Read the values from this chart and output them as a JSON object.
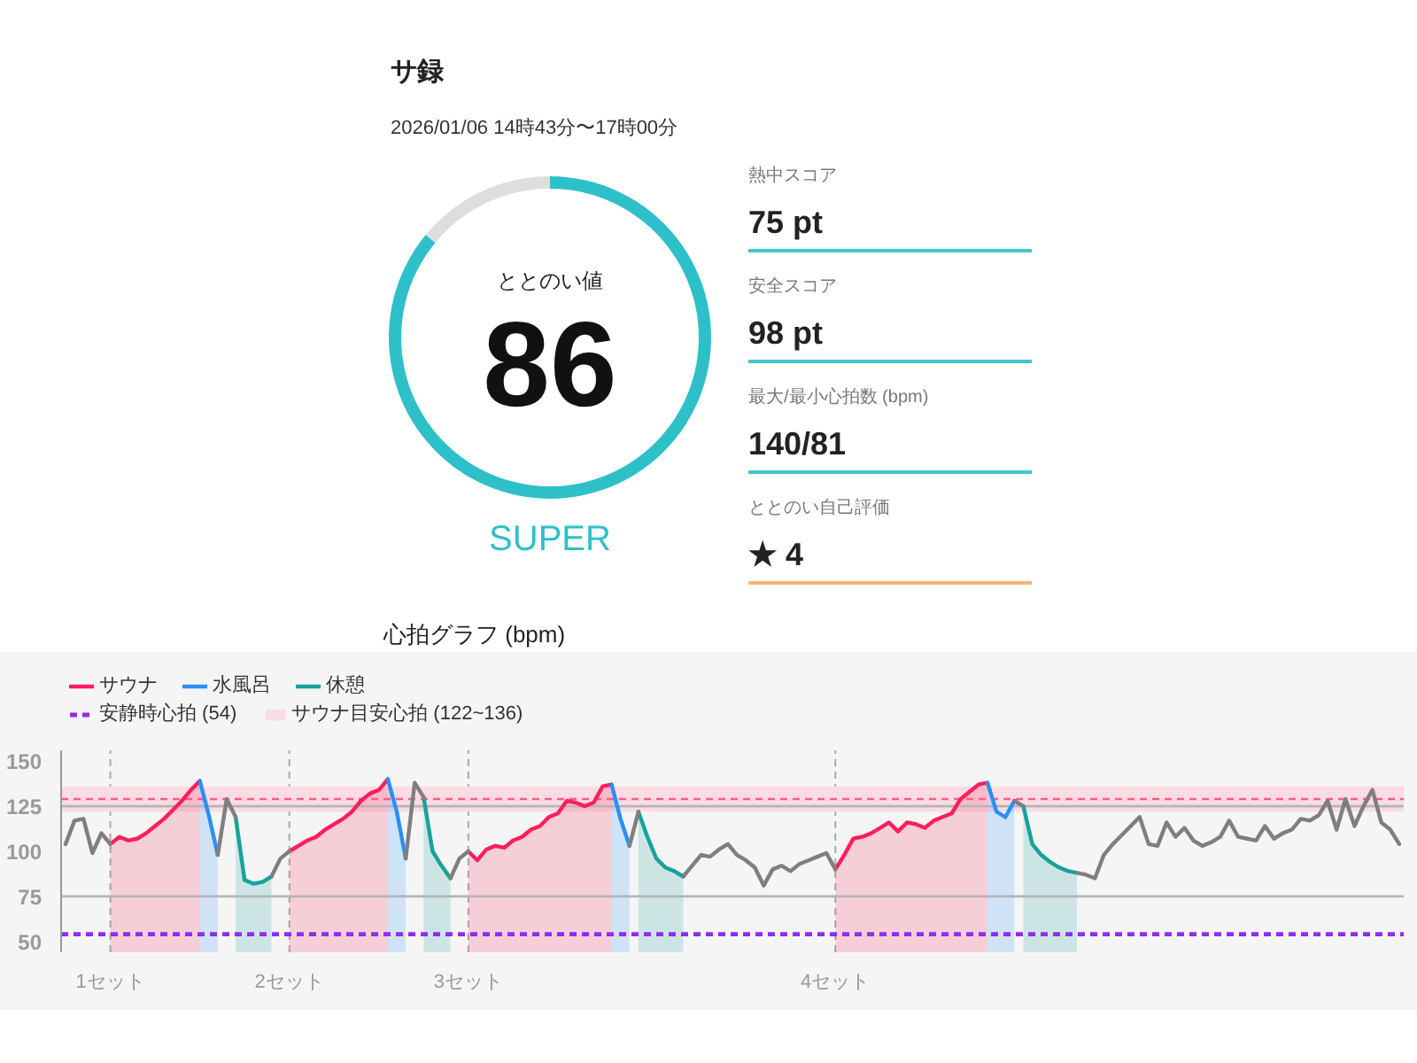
{
  "chart_data": [
    {
      "type": "donut",
      "title": "サ録",
      "subtitle": "2026/01/06 14時43分〜17時00分",
      "categories": [
        null,
        null
      ],
      "values": [
        86,
        14
      ],
      "colors": [
        "#2ec0c8",
        "#dedede"
      ],
      "value_labels": [
        "86",
        null
      ],
      "annotations": [
        "ととのい値",
        "SUPER"
      ]
    },
    {
      "type": "other",
      "annotations": [
        "熱中スコア",
        "75 pt",
        "安全スコア",
        "98 pt",
        "最大/最小心拍数 (bpm)",
        "140/81",
        "ととのい自己評価",
        "★ 4"
      ],
      "colors": [
        "#42c6cc",
        "#42c6cc",
        "#42c6cc",
        "#f7b27a"
      ]
    },
    {
      "type": "line",
      "title": "心拍グラフ (bpm)",
      "categories": [
        null,
        null,
        null,
        null,
        null,
        "1セット",
        null,
        null,
        null,
        null,
        null,
        null,
        null,
        null,
        null,
        null,
        null,
        null,
        null,
        null,
        null,
        null,
        null,
        null,
        null,
        "2セット",
        null,
        null,
        null,
        null,
        null,
        null,
        null,
        null,
        null,
        null,
        null,
        null,
        null,
        null,
        null,
        null,
        null,
        null,
        null,
        "3セット",
        null,
        null,
        null,
        null,
        null,
        null,
        null,
        null,
        null,
        null,
        null,
        null,
        null,
        null,
        null,
        null,
        null,
        null,
        null,
        null,
        null,
        null,
        null,
        null,
        null,
        null,
        null,
        null,
        null,
        null,
        null,
        null,
        null,
        null,
        null,
        null,
        null,
        null,
        null,
        null,
        "4セット",
        null,
        null,
        null,
        null,
        null,
        null,
        null,
        null,
        null,
        null,
        null,
        null,
        null,
        null,
        null,
        null,
        null,
        null,
        null,
        null,
        null,
        null,
        null,
        null,
        null,
        null,
        null,
        null,
        null,
        null,
        null,
        null,
        null,
        null,
        null,
        null,
        null,
        null,
        null,
        null,
        null,
        null,
        null,
        null,
        null,
        null,
        null,
        null,
        null,
        null,
        null,
        null,
        null,
        null,
        null,
        null,
        null,
        null,
        null,
        null,
        null,
        null,
        null
      ],
      "series": [
        {
          "name": "サウナ",
          "type": "area",
          "color": "#ff1f5b",
          "values": [
            null,
            null,
            null,
            null,
            null,
            104,
            108,
            106,
            107,
            110,
            114,
            118,
            123,
            128,
            134,
            139,
            null,
            null,
            null,
            null,
            null,
            null,
            null,
            null,
            null,
            100,
            103,
            106,
            108,
            112,
            115,
            118,
            122,
            128,
            132,
            134,
            140,
            null,
            null,
            null,
            null,
            null,
            null,
            null,
            null,
            100,
            95,
            101,
            103,
            102,
            106,
            108,
            112,
            114,
            119,
            121,
            128,
            127,
            125,
            127,
            136,
            137,
            null,
            null,
            null,
            null,
            null,
            null,
            null,
            null,
            null,
            null,
            null,
            null,
            null,
            null,
            null,
            null,
            null,
            null,
            null,
            null,
            null,
            null,
            null,
            null,
            90,
            98,
            107,
            108,
            110,
            113,
            116,
            111,
            116,
            115,
            113,
            117,
            119,
            121,
            129,
            133,
            137,
            138,
            null,
            null,
            null,
            null,
            null,
            null,
            null,
            null,
            null,
            null,
            null,
            null,
            null,
            null,
            null,
            null,
            null,
            null,
            null,
            null,
            null,
            null,
            null,
            null,
            null,
            null,
            null,
            null,
            null,
            null,
            null,
            null,
            null,
            null,
            null,
            null,
            null,
            null,
            null,
            null,
            null,
            null,
            null,
            null,
            null,
            null
          ]
        },
        {
          "name": "水風呂",
          "type": "area",
          "color": "#2a8ff7",
          "values": [
            null,
            null,
            null,
            null,
            null,
            null,
            null,
            null,
            null,
            null,
            null,
            null,
            null,
            null,
            null,
            139,
            120,
            98,
            null,
            null,
            null,
            null,
            null,
            null,
            null,
            null,
            null,
            null,
            null,
            null,
            null,
            null,
            null,
            null,
            null,
            null,
            140,
            122,
            96,
            null,
            null,
            null,
            null,
            null,
            null,
            null,
            null,
            null,
            null,
            null,
            null,
            null,
            null,
            null,
            null,
            null,
            null,
            null,
            null,
            null,
            null,
            137,
            118,
            103,
            null,
            null,
            null,
            null,
            null,
            null,
            null,
            null,
            null,
            null,
            null,
            null,
            null,
            null,
            null,
            null,
            null,
            null,
            null,
            null,
            null,
            null,
            null,
            null,
            null,
            null,
            null,
            null,
            null,
            null,
            null,
            null,
            null,
            null,
            null,
            null,
            null,
            null,
            null,
            138,
            122,
            119,
            128,
            null,
            null,
            null,
            null,
            null,
            null,
            null,
            null,
            null,
            null,
            null,
            null,
            null,
            null,
            null,
            null,
            null,
            null,
            null,
            null,
            null,
            null,
            null,
            null,
            null,
            null,
            null,
            null,
            null,
            null,
            null,
            null,
            null,
            null,
            null,
            null,
            null,
            null,
            null,
            null,
            null,
            null,
            null
          ]
        },
        {
          "name": "休憩",
          "type": "area",
          "color": "#16a39b",
          "values": [
            null,
            null,
            null,
            null,
            null,
            null,
            null,
            null,
            null,
            null,
            null,
            null,
            null,
            null,
            null,
            null,
            null,
            null,
            null,
            119,
            84,
            82,
            83,
            86,
            null,
            null,
            null,
            null,
            null,
            null,
            null,
            null,
            null,
            null,
            null,
            null,
            null,
            null,
            null,
            null,
            130,
            100,
            92,
            85,
            null,
            null,
            null,
            null,
            null,
            null,
            null,
            null,
            null,
            null,
            null,
            null,
            null,
            null,
            null,
            null,
            null,
            null,
            null,
            null,
            122,
            108,
            96,
            91,
            89,
            86,
            null,
            null,
            null,
            null,
            null,
            null,
            null,
            null,
            null,
            null,
            null,
            null,
            null,
            null,
            null,
            null,
            null,
            null,
            null,
            null,
            null,
            null,
            null,
            null,
            null,
            null,
            null,
            null,
            null,
            null,
            null,
            null,
            null,
            null,
            null,
            null,
            null,
            125,
            104,
            98,
            94,
            91,
            89,
            88,
            null,
            null,
            null,
            null,
            null,
            null,
            null,
            null,
            null,
            null,
            null,
            null,
            null,
            null,
            null,
            null,
            null,
            null,
            null,
            null,
            null,
            null,
            null,
            null,
            null,
            null,
            null,
            null,
            null,
            null,
            null,
            null,
            null,
            null,
            null,
            null
          ]
        },
        {
          "type": "line",
          "color": "#7f7f7f",
          "values": [
            104,
            117,
            118,
            99,
            110,
            104,
            null,
            null,
            null,
            null,
            null,
            null,
            null,
            null,
            null,
            null,
            null,
            98,
            129,
            119,
            null,
            null,
            null,
            86,
            96,
            100,
            null,
            null,
            null,
            null,
            null,
            null,
            null,
            null,
            null,
            null,
            null,
            null,
            96,
            138,
            130,
            null,
            null,
            85,
            96,
            100,
            null,
            null,
            null,
            null,
            null,
            null,
            null,
            null,
            null,
            null,
            null,
            null,
            null,
            null,
            null,
            null,
            null,
            103,
            122,
            null,
            null,
            null,
            null,
            86,
            92,
            98,
            97,
            101,
            104,
            98,
            95,
            91,
            81,
            90,
            92,
            89,
            93,
            95,
            97,
            99,
            90,
            null,
            null,
            null,
            null,
            null,
            null,
            null,
            null,
            null,
            null,
            null,
            null,
            null,
            null,
            null,
            null,
            null,
            null,
            null,
            128,
            125,
            null,
            null,
            null,
            null,
            null,
            88,
            87,
            85,
            98,
            104,
            109,
            114,
            119,
            104,
            103,
            116,
            108,
            113,
            106,
            103,
            105,
            108,
            117,
            108,
            107,
            106,
            114,
            107,
            110,
            112,
            118,
            117,
            120,
            128,
            112,
            129,
            114,
            125,
            134,
            116,
            112,
            104
          ]
        }
      ],
      "ylim": [
        44,
        156
      ],
      "yticks": [
        50,
        75,
        100,
        125,
        150
      ],
      "grid": "x",
      "legend": "top left",
      "ref_lines": [
        {
          "axis": "y",
          "value": 54,
          "label": "安静時心拍 (54)",
          "color": "#8f2cf5",
          "line_style": "dashed"
        },
        {
          "axis": "y",
          "value": 129,
          "color": "#ff5c86",
          "line_style": "dashed"
        },
        {
          "axis": "y",
          "value": 75,
          "color": "#b5b5b5"
        },
        {
          "axis": "y",
          "value": 125,
          "color": "#b5b5b5"
        }
      ],
      "bands": [
        {
          "axis": "y",
          "from": 122,
          "to": 136,
          "label": "サウナ目安心拍 (122~136)",
          "color": "#fcdce4"
        }
      ]
    }
  ]
}
